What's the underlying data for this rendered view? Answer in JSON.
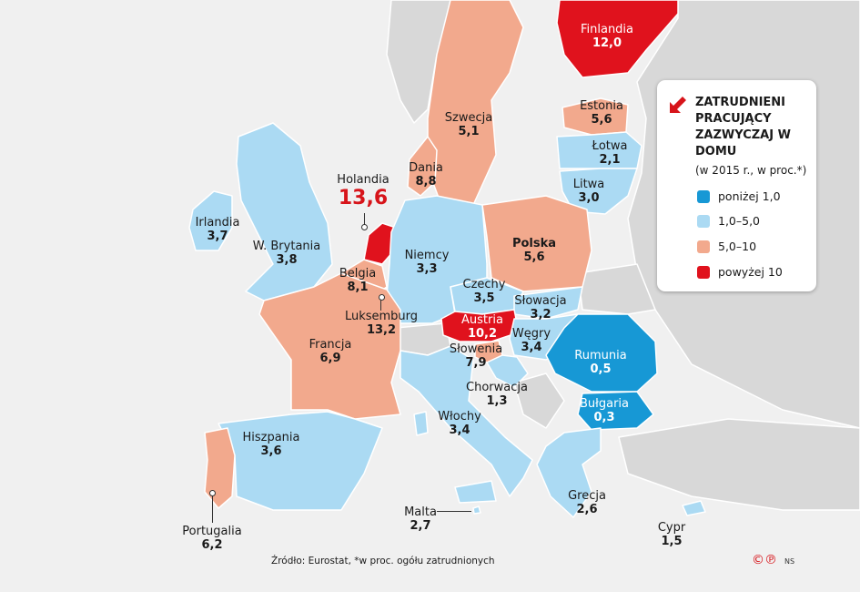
{
  "colors": {
    "ponizej_1": "#1798d5",
    "1_5": "#abdaf3",
    "5_10": "#f2a98d",
    "powyzej_10": "#e0121d",
    "other_land": "#d8d8d8"
  },
  "legend": {
    "title": "Zatrudnieni pracujący zazwyczaj w domu",
    "subtitle": "(w 2015 r., w proc.*)",
    "items": [
      {
        "label": "poniżej 1,0",
        "key": "ponizej_1"
      },
      {
        "label": "1,0–5,0",
        "key": "1_5"
      },
      {
        "label": "5,0–10",
        "key": "5_10"
      },
      {
        "label": "powyżej 10",
        "key": "powyzej_10"
      }
    ]
  },
  "countries": {
    "finlandia": {
      "name": "Finlandia",
      "value": "12,0",
      "cat": "powyzej_10"
    },
    "szwecja": {
      "name": "Szwecja",
      "value": "5,1",
      "cat": "5_10"
    },
    "estonia": {
      "name": "Estonia",
      "value": "5,6",
      "cat": "5_10"
    },
    "lotwa": {
      "name": "Łotwa",
      "value": "2,1",
      "cat": "1_5"
    },
    "litwa": {
      "name": "Litwa",
      "value": "3,0",
      "cat": "1_5"
    },
    "dania": {
      "name": "Dania",
      "value": "8,8",
      "cat": "5_10"
    },
    "holandia": {
      "name": "Holandia",
      "value": "13,6",
      "cat": "powyzej_10"
    },
    "irlandia": {
      "name": "Irlandia",
      "value": "3,7",
      "cat": "1_5"
    },
    "wbrytania": {
      "name": "W. Brytania",
      "value": "3,8",
      "cat": "1_5"
    },
    "niemcy": {
      "name": "Niemcy",
      "value": "3,3",
      "cat": "1_5"
    },
    "polska": {
      "name": "Polska",
      "value": "5,6",
      "cat": "5_10"
    },
    "belgia": {
      "name": "Belgia",
      "value": "8,1",
      "cat": "5_10"
    },
    "czechy": {
      "name": "Czechy",
      "value": "3,5",
      "cat": "1_5"
    },
    "slowacja": {
      "name": "Słowacja",
      "value": "3,2",
      "cat": "1_5"
    },
    "luksemburg": {
      "name": "Luksemburg",
      "value": "13,2",
      "cat": "powyzej_10"
    },
    "austria": {
      "name": "Austria",
      "value": "10,2",
      "cat": "powyzej_10"
    },
    "francja": {
      "name": "Francja",
      "value": "6,9",
      "cat": "5_10"
    },
    "slowenia": {
      "name": "Słowenia",
      "value": "7,9",
      "cat": "5_10"
    },
    "wegry": {
      "name": "Węgry",
      "value": "3,4",
      "cat": "1_5"
    },
    "rumunia": {
      "name": "Rumunia",
      "value": "0,5",
      "cat": "ponizej_1"
    },
    "chorwacja": {
      "name": "Chorwacja",
      "value": "1,3",
      "cat": "1_5"
    },
    "bulgaria": {
      "name": "Bułgaria",
      "value": "0,3",
      "cat": "ponizej_1"
    },
    "wlochy": {
      "name": "Włochy",
      "value": "3,4",
      "cat": "1_5"
    },
    "hiszpania": {
      "name": "Hiszpania",
      "value": "3,6",
      "cat": "1_5"
    },
    "portugalia": {
      "name": "Portugalia",
      "value": "6,2",
      "cat": "5_10"
    },
    "malta": {
      "name": "Malta",
      "value": "2,7",
      "cat": "1_5"
    },
    "grecja": {
      "name": "Grecja",
      "value": "2,6",
      "cat": "1_5"
    },
    "cypr": {
      "name": "Cypr",
      "value": "1,5",
      "cat": "1_5"
    }
  },
  "footer": {
    "source": "Źródło: Eurostat, *w proc. ogółu zatrudnionych",
    "copyright": "©℗",
    "author": "NS"
  }
}
